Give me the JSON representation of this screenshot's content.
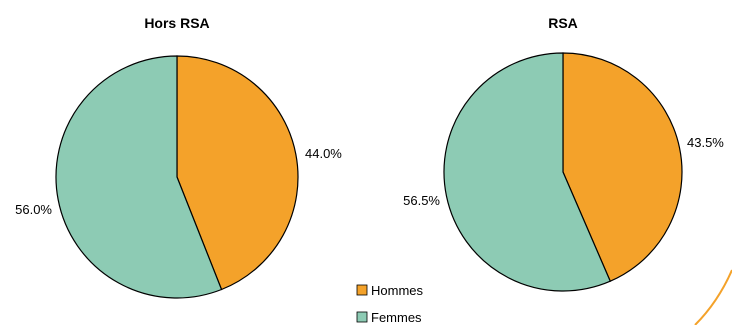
{
  "colors": {
    "hommes": "#F4A22A",
    "femmes": "#8DCBB4",
    "stroke": "#000000",
    "accent_arc": "#F4A22A"
  },
  "legend": {
    "placement": "bottom-center",
    "items": [
      {
        "label": "Hommes",
        "color": "#F4A22A"
      },
      {
        "label": "Femmes",
        "color": "#8DCBB4"
      }
    ]
  },
  "chart_data": [
    {
      "type": "pie",
      "title": "Hors RSA",
      "slices": [
        {
          "label": "Hommes",
          "value": 44.0,
          "display": "44.0%"
        },
        {
          "label": "Femmes",
          "value": 56.0,
          "display": "56.0%"
        }
      ]
    },
    {
      "type": "pie",
      "title": "RSA",
      "slices": [
        {
          "label": "Hommes",
          "value": 43.5,
          "display": "43.5%"
        },
        {
          "label": "Femmes",
          "value": 56.5,
          "display": "56.5%"
        }
      ]
    }
  ]
}
